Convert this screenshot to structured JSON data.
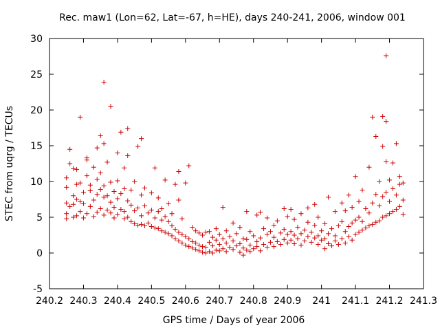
{
  "chart_data": {
    "type": "scatter",
    "title": "Rec. maw1 (Lon=62, Lat=-67, h=HE), days 240-241, 2006, window 001",
    "xlabel": "GPS time / Days of year 2006",
    "ylabel": "STEC from uqrg / TECUs",
    "xlim": [
      240.2,
      241.3
    ],
    "ylim": [
      -5,
      30
    ],
    "x_ticks": [
      240.2,
      240.3,
      240.4,
      240.5,
      240.6,
      240.7,
      240.8,
      240.9,
      241.0,
      241.1,
      241.2,
      241.3
    ],
    "x_tick_labels": [
      "240.2",
      "240.3",
      "240.4",
      "240.5",
      "240.6",
      "240.7",
      "240.8",
      "240.9",
      "241",
      "241.1",
      "241.2",
      "241.3"
    ],
    "y_ticks": [
      -5,
      0,
      5,
      10,
      15,
      20,
      25,
      30
    ],
    "y_tick_labels": [
      "-5",
      "0",
      "5",
      "10",
      "15",
      "20",
      "25",
      "30"
    ],
    "grid": false,
    "marker": "plus",
    "color": "#cc0000",
    "series": [
      {
        "points": [
          [
            240.25,
            4.8
          ],
          [
            240.25,
            5.5
          ],
          [
            240.25,
            7.0
          ],
          [
            240.25,
            9.2
          ],
          [
            240.25,
            10.5
          ],
          [
            240.26,
            6.5
          ],
          [
            240.26,
            12.5
          ],
          [
            240.26,
            14.5
          ],
          [
            240.27,
            5.0
          ],
          [
            240.27,
            6.8
          ],
          [
            240.27,
            8.0
          ],
          [
            240.27,
            11.8
          ],
          [
            240.28,
            5.2
          ],
          [
            240.28,
            7.5
          ],
          [
            240.28,
            9.6
          ],
          [
            240.28,
            11.7
          ],
          [
            240.29,
            5.8
          ],
          [
            240.29,
            7.2
          ],
          [
            240.29,
            9.8
          ],
          [
            240.29,
            19.0
          ],
          [
            240.3,
            4.9
          ],
          [
            240.3,
            6.9
          ],
          [
            240.3,
            8.5
          ],
          [
            240.31,
            5.5
          ],
          [
            240.31,
            10.8
          ],
          [
            240.31,
            13.0
          ],
          [
            240.31,
            13.3
          ],
          [
            240.32,
            6.5
          ],
          [
            240.32,
            8.7
          ],
          [
            240.32,
            9.5
          ],
          [
            240.33,
            5.1
          ],
          [
            240.33,
            7.4
          ],
          [
            240.33,
            12.0
          ],
          [
            240.34,
            5.7
          ],
          [
            240.34,
            8.2
          ],
          [
            240.34,
            10.3
          ],
          [
            240.34,
            14.7
          ],
          [
            240.35,
            6.2
          ],
          [
            240.35,
            8.9
          ],
          [
            240.35,
            11.2
          ],
          [
            240.35,
            16.4
          ],
          [
            240.36,
            5.3
          ],
          [
            240.36,
            7.8
          ],
          [
            240.36,
            9.4
          ],
          [
            240.36,
            15.3
          ],
          [
            240.36,
            23.9
          ],
          [
            240.37,
            6.0
          ],
          [
            240.37,
            8.0
          ],
          [
            240.37,
            12.7
          ],
          [
            240.38,
            5.6
          ],
          [
            240.38,
            7.1
          ],
          [
            240.38,
            9.9
          ],
          [
            240.38,
            20.5
          ],
          [
            240.39,
            4.9
          ],
          [
            240.39,
            6.4
          ],
          [
            240.39,
            8.6
          ],
          [
            240.4,
            5.4
          ],
          [
            240.4,
            7.6
          ],
          [
            240.4,
            10.1
          ],
          [
            240.4,
            14.0
          ],
          [
            240.41,
            6.1
          ],
          [
            240.41,
            8.3
          ],
          [
            240.41,
            16.9
          ],
          [
            240.42,
            4.8
          ],
          [
            240.42,
            5.8
          ],
          [
            240.42,
            9.0
          ],
          [
            240.42,
            11.9
          ],
          [
            240.43,
            5.0
          ],
          [
            240.43,
            7.3
          ],
          [
            240.43,
            13.6
          ],
          [
            240.43,
            17.4
          ],
          [
            240.44,
            4.4
          ],
          [
            240.44,
            6.7
          ],
          [
            240.44,
            8.8
          ],
          [
            240.45,
            4.1
          ],
          [
            240.45,
            5.9
          ],
          [
            240.45,
            10.0
          ],
          [
            240.46,
            3.9
          ],
          [
            240.46,
            6.3
          ],
          [
            240.46,
            14.9
          ],
          [
            240.47,
            4.0
          ],
          [
            240.47,
            5.2
          ],
          [
            240.47,
            8.1
          ],
          [
            240.47,
            16.0
          ],
          [
            240.48,
            3.8
          ],
          [
            240.48,
            6.6
          ],
          [
            240.48,
            9.1
          ],
          [
            240.49,
            4.2
          ],
          [
            240.49,
            5.6
          ],
          [
            240.5,
            3.7
          ],
          [
            240.5,
            6.0
          ],
          [
            240.5,
            8.4
          ],
          [
            240.51,
            3.5
          ],
          [
            240.51,
            4.9
          ],
          [
            240.51,
            11.9
          ],
          [
            240.52,
            3.4
          ],
          [
            240.52,
            5.8
          ],
          [
            240.52,
            7.7
          ],
          [
            240.53,
            3.1
          ],
          [
            240.53,
            4.6
          ],
          [
            240.53,
            6.2
          ],
          [
            240.54,
            2.9
          ],
          [
            240.54,
            5.1
          ],
          [
            240.54,
            10.2
          ],
          [
            240.55,
            2.7
          ],
          [
            240.55,
            4.4
          ],
          [
            240.55,
            6.9
          ],
          [
            240.56,
            2.4
          ],
          [
            240.56,
            3.8
          ],
          [
            240.56,
            5.5
          ],
          [
            240.57,
            2.0
          ],
          [
            240.57,
            3.3
          ],
          [
            240.57,
            9.6
          ],
          [
            240.58,
            1.7
          ],
          [
            240.58,
            2.9
          ],
          [
            240.58,
            7.4
          ],
          [
            240.58,
            11.4
          ],
          [
            240.59,
            1.4
          ],
          [
            240.59,
            2.6
          ],
          [
            240.59,
            4.8
          ],
          [
            240.6,
            1.1
          ],
          [
            240.6,
            2.3
          ],
          [
            240.6,
            9.8
          ],
          [
            240.61,
            0.9
          ],
          [
            240.61,
            2.0
          ],
          [
            240.61,
            12.2
          ],
          [
            240.62,
            0.7
          ],
          [
            240.62,
            1.6
          ],
          [
            240.62,
            3.6
          ],
          [
            240.63,
            0.5
          ],
          [
            240.63,
            1.4
          ],
          [
            240.63,
            3.1
          ],
          [
            240.64,
            0.3
          ],
          [
            240.64,
            1.1
          ],
          [
            240.64,
            2.8
          ],
          [
            240.65,
            0.1
          ],
          [
            240.65,
            0.9
          ],
          [
            240.65,
            2.5
          ],
          [
            240.66,
            0.0
          ],
          [
            240.66,
            0.8
          ],
          [
            240.66,
            2.9
          ],
          [
            240.67,
            0.2
          ],
          [
            240.67,
            1.5
          ],
          [
            240.67,
            3.0
          ],
          [
            240.68,
            0.0
          ],
          [
            240.68,
            1.0
          ],
          [
            240.68,
            2.2
          ],
          [
            240.69,
            0.4
          ],
          [
            240.69,
            1.8
          ],
          [
            240.69,
            3.4
          ],
          [
            240.7,
            0.3
          ],
          [
            240.7,
            1.2
          ],
          [
            240.7,
            2.6
          ],
          [
            240.71,
            0.6
          ],
          [
            240.71,
            2.0
          ],
          [
            240.71,
            6.4
          ],
          [
            240.72,
            0.2
          ],
          [
            240.72,
            1.4
          ],
          [
            240.72,
            3.1
          ],
          [
            240.73,
            0.8
          ],
          [
            240.73,
            2.3
          ],
          [
            240.74,
            0.5
          ],
          [
            240.74,
            1.7
          ],
          [
            240.74,
            4.2
          ],
          [
            240.75,
            1.0
          ],
          [
            240.75,
            2.7
          ],
          [
            240.76,
            0.1
          ],
          [
            240.76,
            1.3
          ],
          [
            240.76,
            3.6
          ],
          [
            240.77,
            -0.3
          ],
          [
            240.77,
            0.7
          ],
          [
            240.77,
            2.0
          ],
          [
            240.78,
            0.4
          ],
          [
            240.78,
            1.9
          ],
          [
            240.78,
            5.8
          ],
          [
            240.79,
            0.2
          ],
          [
            240.79,
            1.1
          ],
          [
            240.79,
            3.0
          ],
          [
            240.8,
            0.6
          ],
          [
            240.8,
            2.4
          ],
          [
            240.81,
            0.9
          ],
          [
            240.81,
            1.6
          ],
          [
            240.81,
            5.3
          ],
          [
            240.82,
            0.3
          ],
          [
            240.82,
            2.1
          ],
          [
            240.82,
            5.7
          ],
          [
            240.83,
            1.2
          ],
          [
            240.83,
            3.4
          ],
          [
            240.84,
            0.8
          ],
          [
            240.84,
            2.6
          ],
          [
            240.84,
            4.9
          ],
          [
            240.85,
            1.5
          ],
          [
            240.85,
            3.0
          ],
          [
            240.86,
            0.9
          ],
          [
            240.86,
            2.2
          ],
          [
            240.86,
            3.9
          ],
          [
            240.87,
            1.6
          ],
          [
            240.87,
            4.5
          ],
          [
            240.88,
            1.2
          ],
          [
            240.88,
            2.8
          ],
          [
            240.89,
            1.9
          ],
          [
            240.89,
            3.3
          ],
          [
            240.89,
            6.2
          ],
          [
            240.9,
            1.4
          ],
          [
            240.9,
            2.6
          ],
          [
            240.9,
            5.1
          ],
          [
            240.91,
            1.8
          ],
          [
            240.91,
            3.0
          ],
          [
            240.91,
            6.1
          ],
          [
            240.92,
            1.3
          ],
          [
            240.92,
            2.5
          ],
          [
            240.92,
            4.7
          ],
          [
            240.93,
            2.0
          ],
          [
            240.93,
            3.6
          ],
          [
            240.94,
            1.1
          ],
          [
            240.94,
            2.7
          ],
          [
            240.94,
            5.5
          ],
          [
            240.95,
            1.7
          ],
          [
            240.95,
            3.2
          ],
          [
            240.96,
            2.3
          ],
          [
            240.96,
            4.3
          ],
          [
            240.96,
            6.3
          ],
          [
            240.97,
            1.5
          ],
          [
            240.97,
            2.9
          ],
          [
            240.98,
            2.1
          ],
          [
            240.98,
            3.9
          ],
          [
            240.98,
            6.8
          ],
          [
            240.99,
            1.2
          ],
          [
            240.99,
            2.4
          ],
          [
            240.99,
            5.0
          ],
          [
            241.0,
            1.8
          ],
          [
            241.0,
            3.1
          ],
          [
            241.01,
            0.6
          ],
          [
            241.01,
            2.0
          ],
          [
            241.01,
            4.1
          ],
          [
            241.02,
            1.3
          ],
          [
            241.02,
            2.7
          ],
          [
            241.02,
            7.8
          ],
          [
            241.03,
            1.0
          ],
          [
            241.03,
            3.4
          ],
          [
            241.04,
            1.7
          ],
          [
            241.04,
            2.4
          ],
          [
            241.04,
            5.8
          ],
          [
            241.05,
            1.2
          ],
          [
            241.05,
            3.8
          ],
          [
            241.06,
            2.0
          ],
          [
            241.06,
            4.4
          ],
          [
            241.06,
            7.0
          ],
          [
            241.07,
            1.4
          ],
          [
            241.07,
            3.0
          ],
          [
            241.07,
            5.9
          ],
          [
            241.08,
            2.3
          ],
          [
            241.08,
            3.7
          ],
          [
            241.08,
            8.1
          ],
          [
            241.09,
            1.8
          ],
          [
            241.09,
            4.2
          ],
          [
            241.09,
            6.4
          ],
          [
            241.1,
            2.6
          ],
          [
            241.1,
            4.6
          ],
          [
            241.1,
            10.7
          ],
          [
            241.11,
            2.9
          ],
          [
            241.11,
            5.0
          ],
          [
            241.11,
            7.2
          ],
          [
            241.12,
            3.2
          ],
          [
            241.12,
            4.4
          ],
          [
            241.12,
            8.8
          ],
          [
            241.13,
            3.5
          ],
          [
            241.13,
            6.2
          ],
          [
            241.14,
            3.8
          ],
          [
            241.14,
            5.6
          ],
          [
            241.14,
            12.0
          ],
          [
            241.15,
            4.0
          ],
          [
            241.15,
            7.0
          ],
          [
            241.15,
            19.0
          ],
          [
            241.16,
            4.3
          ],
          [
            241.16,
            8.2
          ],
          [
            241.16,
            16.3
          ],
          [
            241.17,
            4.5
          ],
          [
            241.17,
            6.6
          ],
          [
            241.17,
            10.0
          ],
          [
            241.18,
            5.0
          ],
          [
            241.18,
            7.9
          ],
          [
            241.18,
            14.9
          ],
          [
            241.18,
            19.1
          ],
          [
            241.19,
            5.2
          ],
          [
            241.19,
            8.5
          ],
          [
            241.19,
            12.8
          ],
          [
            241.19,
            18.4
          ],
          [
            241.19,
            27.6
          ],
          [
            241.2,
            5.5
          ],
          [
            241.2,
            7.2
          ],
          [
            241.2,
            10.2
          ],
          [
            241.21,
            5.8
          ],
          [
            241.21,
            9.0
          ],
          [
            241.21,
            12.6
          ],
          [
            241.22,
            6.1
          ],
          [
            241.22,
            8.1
          ],
          [
            241.22,
            15.3
          ],
          [
            241.23,
            6.5
          ],
          [
            241.23,
            9.6
          ],
          [
            241.23,
            10.7
          ],
          [
            241.24,
            5.4
          ],
          [
            241.24,
            7.4
          ],
          [
            241.24,
            9.8
          ]
        ]
      }
    ]
  }
}
